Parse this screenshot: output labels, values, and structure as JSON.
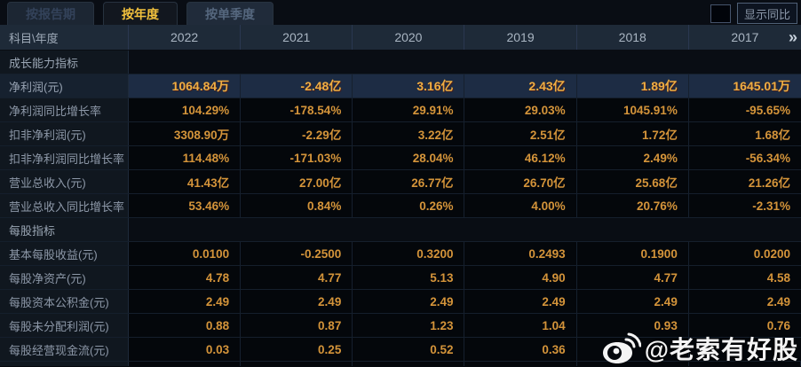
{
  "tabs": [
    {
      "label": "按报告期",
      "active": false
    },
    {
      "label": "按年度",
      "active": true
    },
    {
      "label": "按单季度",
      "active": false
    }
  ],
  "controls": {
    "show_yoy_label": "显示同比",
    "checkbox_checked": false
  },
  "table": {
    "corner": "科目\\年度",
    "columns": [
      "2022",
      "2021",
      "2020",
      "2019",
      "2018",
      "2017"
    ],
    "more_icon": "»",
    "rows": [
      {
        "type": "section",
        "label": "成长能力指标",
        "values": [
          "",
          "",
          "",
          "",
          "",
          ""
        ]
      },
      {
        "type": "highlight",
        "label": "净利润(元)",
        "values": [
          "1064.84万",
          "-2.48亿",
          "3.16亿",
          "2.43亿",
          "1.89亿",
          "1645.01万"
        ]
      },
      {
        "type": "data",
        "label": "净利润同比增长率",
        "values": [
          "104.29%",
          "-178.54%",
          "29.91%",
          "29.03%",
          "1045.91%",
          "-95.65%"
        ]
      },
      {
        "type": "data",
        "label": "扣非净利润(元)",
        "values": [
          "3308.90万",
          "-2.29亿",
          "3.22亿",
          "2.51亿",
          "1.72亿",
          "1.68亿"
        ]
      },
      {
        "type": "data",
        "label": "扣非净利润同比增长率",
        "values": [
          "114.48%",
          "-171.03%",
          "28.04%",
          "46.12%",
          "2.49%",
          "-56.34%"
        ]
      },
      {
        "type": "data",
        "label": "营业总收入(元)",
        "values": [
          "41.43亿",
          "27.00亿",
          "26.77亿",
          "26.70亿",
          "25.68亿",
          "21.26亿"
        ]
      },
      {
        "type": "data",
        "label": "营业总收入同比增长率",
        "values": [
          "53.46%",
          "0.84%",
          "0.26%",
          "4.00%",
          "20.76%",
          "-2.31%"
        ]
      },
      {
        "type": "section",
        "label": "每股指标",
        "values": [
          "",
          "",
          "",
          "",
          "",
          ""
        ]
      },
      {
        "type": "data",
        "label": "基本每股收益(元)",
        "values": [
          "0.0100",
          "-0.2500",
          "0.3200",
          "0.2493",
          "0.1900",
          "0.0200"
        ]
      },
      {
        "type": "data",
        "label": "每股净资产(元)",
        "values": [
          "4.78",
          "4.77",
          "5.13",
          "4.90",
          "4.77",
          "4.58"
        ]
      },
      {
        "type": "data",
        "label": "每股资本公积金(元)",
        "values": [
          "2.49",
          "2.49",
          "2.49",
          "2.49",
          "2.49",
          "2.49"
        ]
      },
      {
        "type": "data",
        "label": "每股未分配利润(元)",
        "values": [
          "0.88",
          "0.87",
          "1.23",
          "1.04",
          "0.93",
          "0.76"
        ]
      },
      {
        "type": "data",
        "label": "每股经营现金流(元)",
        "values": [
          "0.03",
          "0.25",
          "0.52",
          "0.36",
          "",
          ""
        ]
      }
    ]
  },
  "watermark": {
    "text": "@老索有好股",
    "icon": "weibo-icon"
  },
  "colors": {
    "accent_gold": "#f2c13d",
    "value_gold": "#d4943a",
    "highlight_value_gold": "#efae42",
    "highlight_row_bg": "#1d2c44",
    "header_bg": "#1e2a38",
    "label_col_bg": "#10171f",
    "page_bg": "#05080d"
  }
}
